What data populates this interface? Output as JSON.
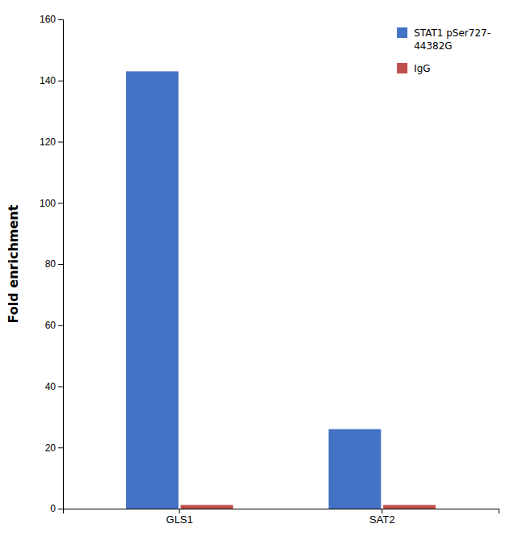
{
  "chart_data": {
    "type": "bar",
    "categories": [
      "GLS1",
      "SAT2"
    ],
    "series": [
      {
        "name": "STAT1 pSer727-\n44382G",
        "color": "#4472C4",
        "values": [
          143,
          26
        ]
      },
      {
        "name": "IgG",
        "color": "#C0504D",
        "values": [
          1.2,
          1.2
        ]
      }
    ],
    "ylabel": "Fold enrichment",
    "ylim": [
      0,
      160
    ],
    "yticks": [
      0,
      20,
      40,
      60,
      80,
      100,
      120,
      140,
      160
    ],
    "grid": false,
    "legend": "upper right"
  }
}
